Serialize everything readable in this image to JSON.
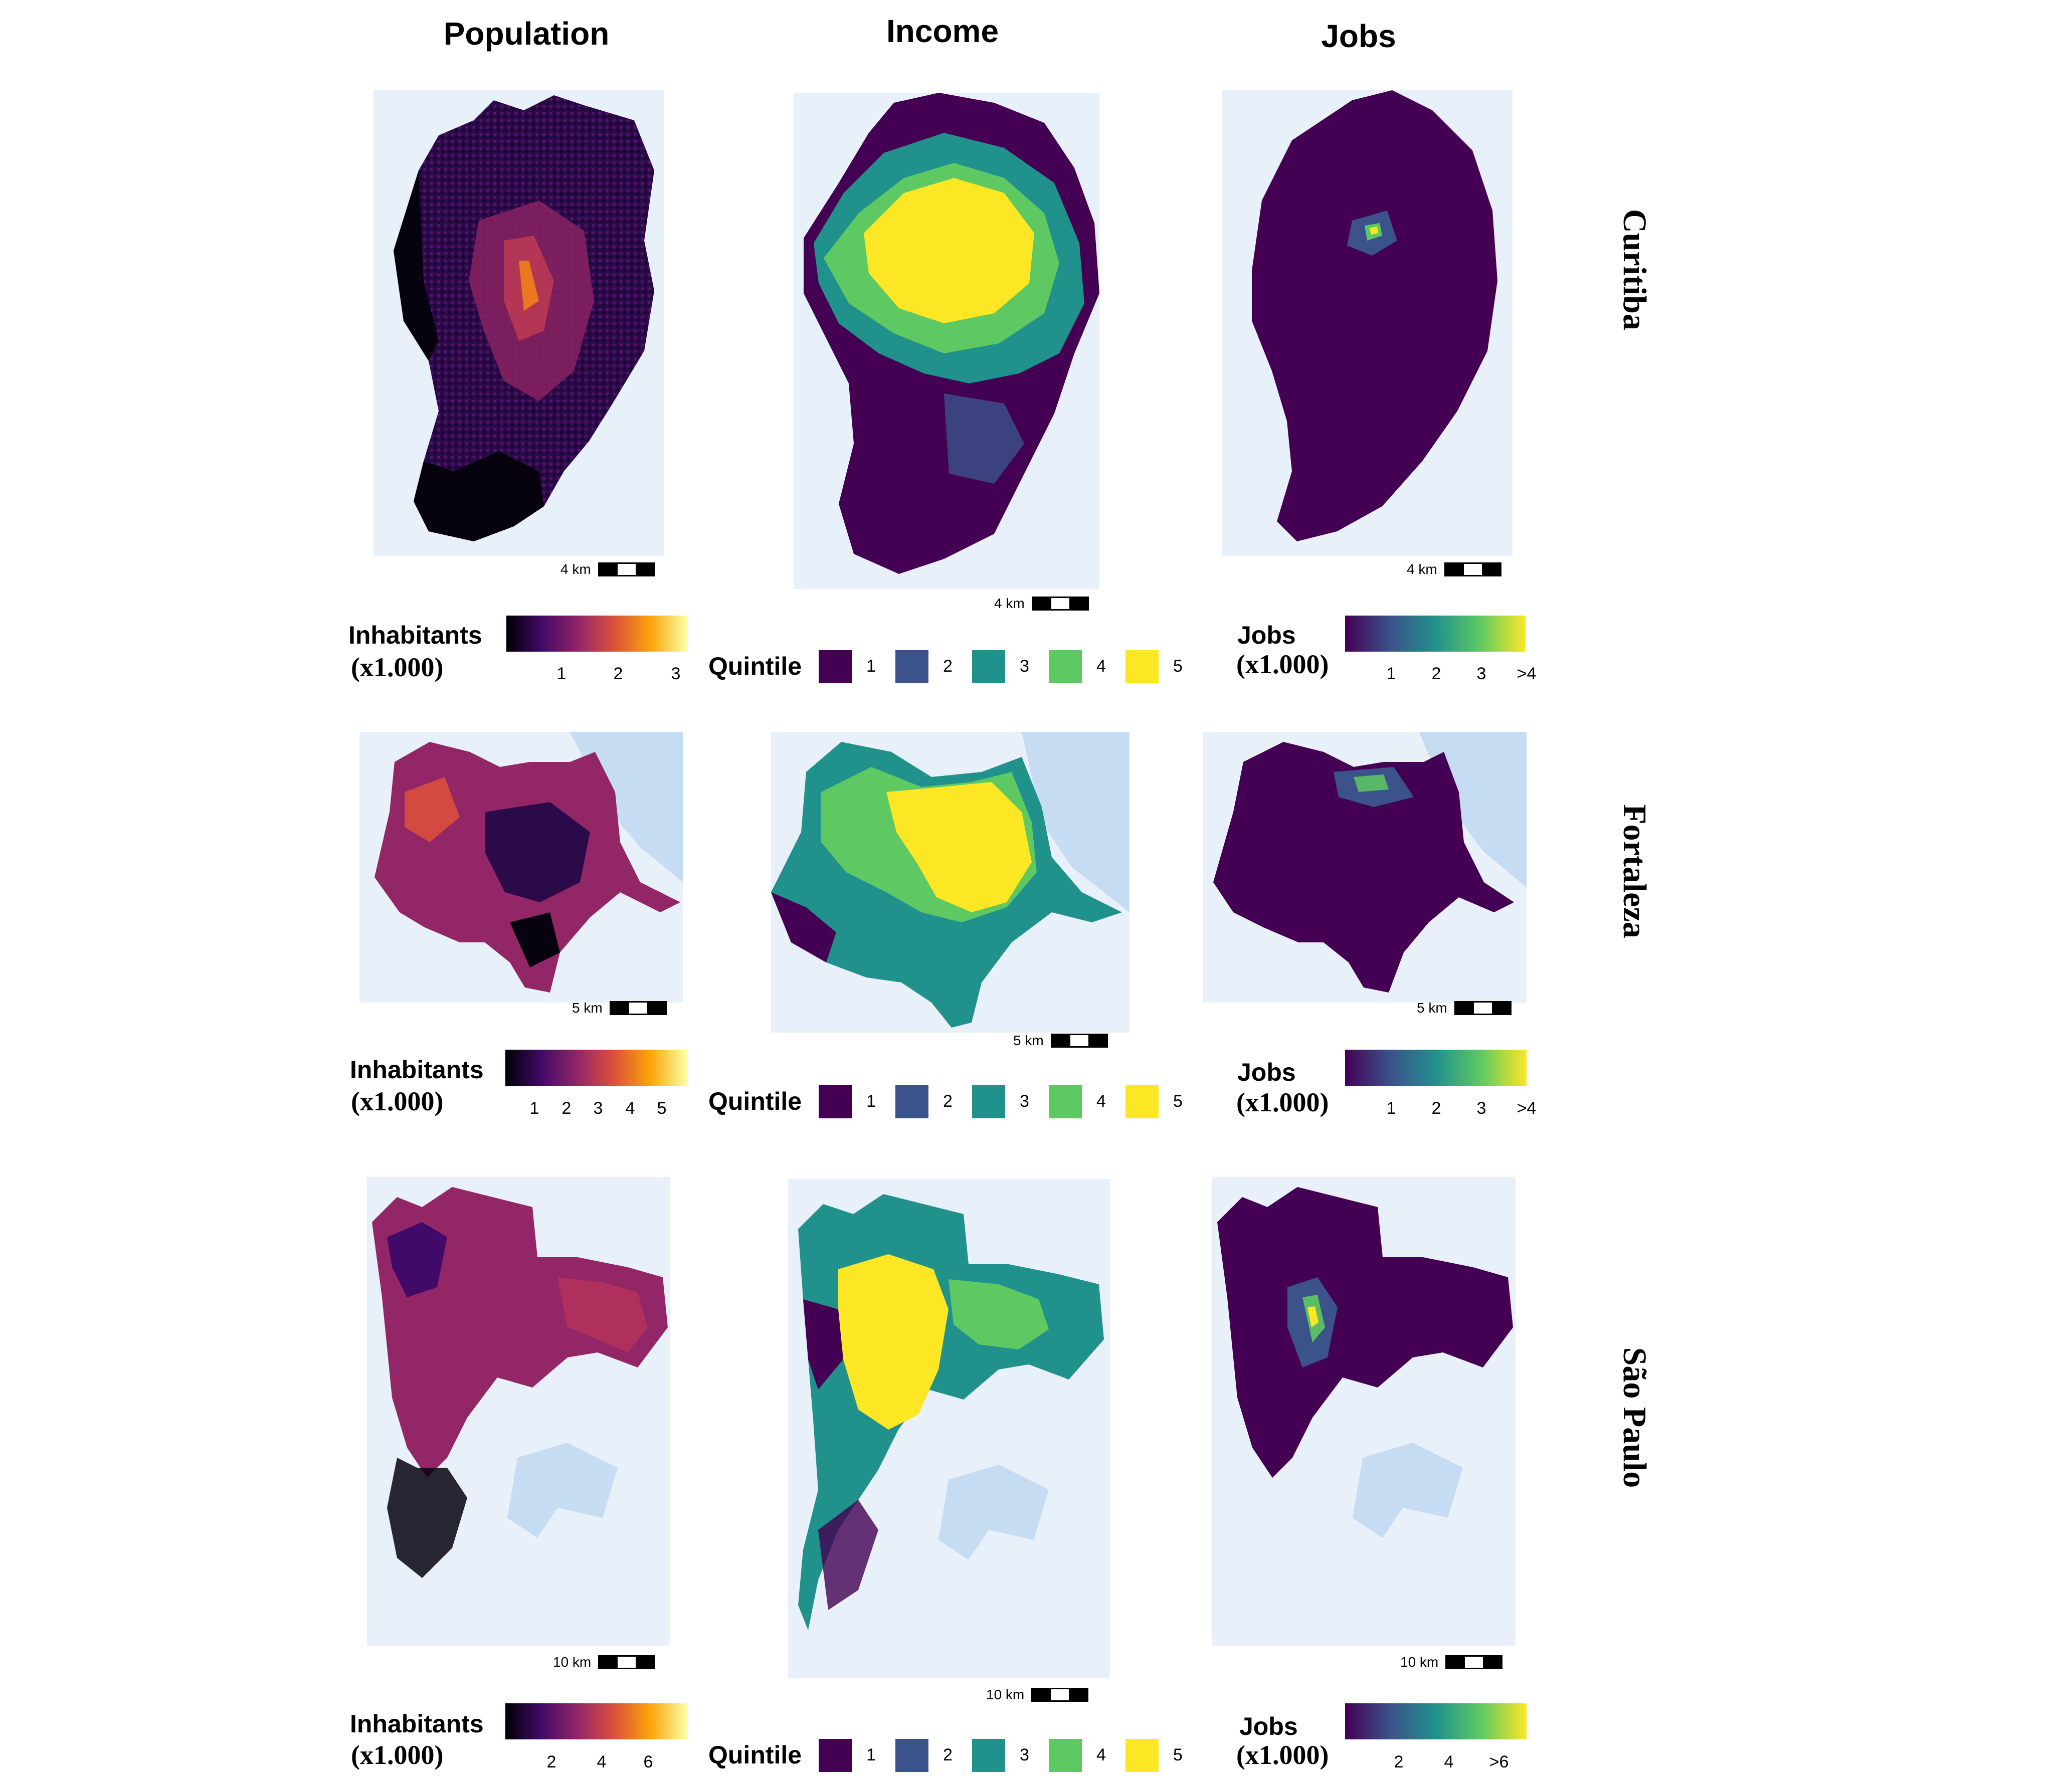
{
  "columns": {
    "population": "Population",
    "income": "Income",
    "jobs": "Jobs"
  },
  "cities": {
    "curitiba": "Curitiba",
    "fortaleza": "Fortaleza",
    "sao_paulo": "São Paulo"
  },
  "scale": {
    "curitiba": "4 km",
    "fortaleza": "5 km",
    "sao_paulo": "10 km"
  },
  "legend": {
    "inhabitants": "Inhabitants",
    "jobs": "Jobs",
    "unit": "(x1.000)",
    "quintile": "Quintile",
    "quintile_values": [
      "1",
      "2",
      "3",
      "4",
      "5"
    ],
    "quintile_colors": [
      "#440154",
      "#3b528b",
      "#21918c",
      "#5ec962",
      "#fde725"
    ],
    "curitiba_pop_ticks": [
      "1",
      "2",
      "3"
    ],
    "fortaleza_pop_ticks": [
      "1",
      "2",
      "3",
      "4",
      "5"
    ],
    "sao_paulo_pop_ticks": [
      "2",
      "4",
      "6"
    ],
    "curitiba_jobs_ticks": [
      "1",
      "2",
      "3",
      ">4"
    ],
    "fortaleza_jobs_ticks": [
      "1",
      "2",
      "3",
      ">4"
    ],
    "sao_paulo_jobs_ticks": [
      "2",
      "4",
      ">6"
    ]
  },
  "colors": {
    "inferno": [
      "#000004",
      "#420a68",
      "#932667",
      "#dd513a",
      "#fca50a",
      "#fcffa4"
    ],
    "viridis": [
      "#440154",
      "#3b528b",
      "#21918c",
      "#5ec962",
      "#fde725"
    ],
    "map_background": "#e8f0fa",
    "water": "#c6dcf2"
  }
}
